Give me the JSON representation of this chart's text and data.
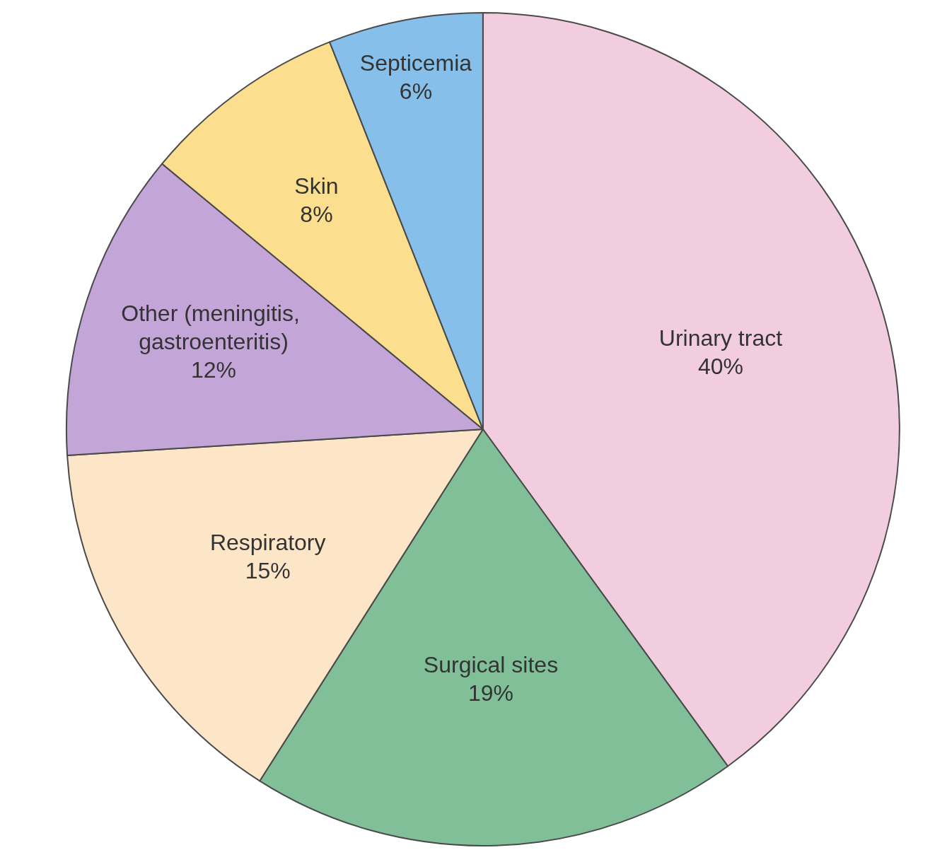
{
  "chart_data": {
    "type": "pie",
    "categories": [
      "Urinary tract",
      "Surgical sites",
      "Respiratory",
      "Other (meningitis, gastroenteritis)",
      "Skin",
      "Septicemia"
    ],
    "values": [
      40,
      19,
      15,
      12,
      8,
      6
    ],
    "value_labels": [
      "40%",
      "19%",
      "15%",
      "12%",
      "8%",
      "6%"
    ],
    "colors": [
      "#f2cde0",
      "#80bf98",
      "#fde6c8",
      "#c3a5d8",
      "#fbdf8f",
      "#86bfea"
    ],
    "legend": false
  }
}
